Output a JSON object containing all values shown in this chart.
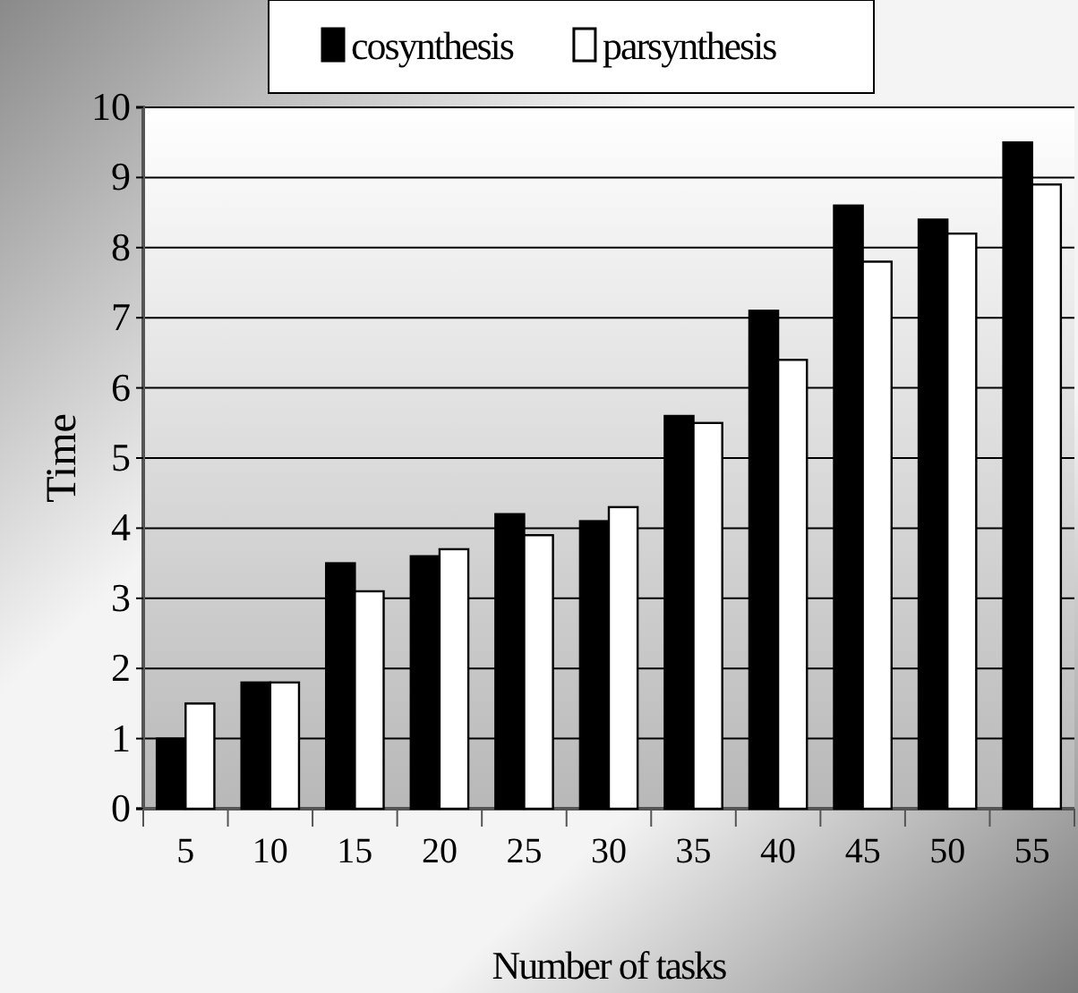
{
  "chart_data": {
    "type": "bar",
    "xlabel": "Number of tasks",
    "ylabel": "Time",
    "categories": [
      "5",
      "10",
      "15",
      "20",
      "25",
      "30",
      "35",
      "40",
      "45",
      "50",
      "55"
    ],
    "series": [
      {
        "name": "cosynthesis",
        "color": "#000000",
        "values": [
          1.0,
          1.8,
          3.5,
          3.6,
          4.2,
          4.1,
          5.6,
          7.1,
          8.6,
          8.4,
          9.5
        ]
      },
      {
        "name": "parsynthesis",
        "color": "#ffffff",
        "values": [
          1.5,
          1.8,
          3.1,
          3.7,
          3.9,
          4.3,
          5.5,
          6.4,
          7.8,
          8.2,
          8.9
        ]
      }
    ],
    "ylim": [
      0,
      10
    ],
    "yticks": [
      0,
      1,
      2,
      3,
      4,
      5,
      6,
      7,
      8,
      9,
      10
    ],
    "grid": "y",
    "legend": "top"
  }
}
